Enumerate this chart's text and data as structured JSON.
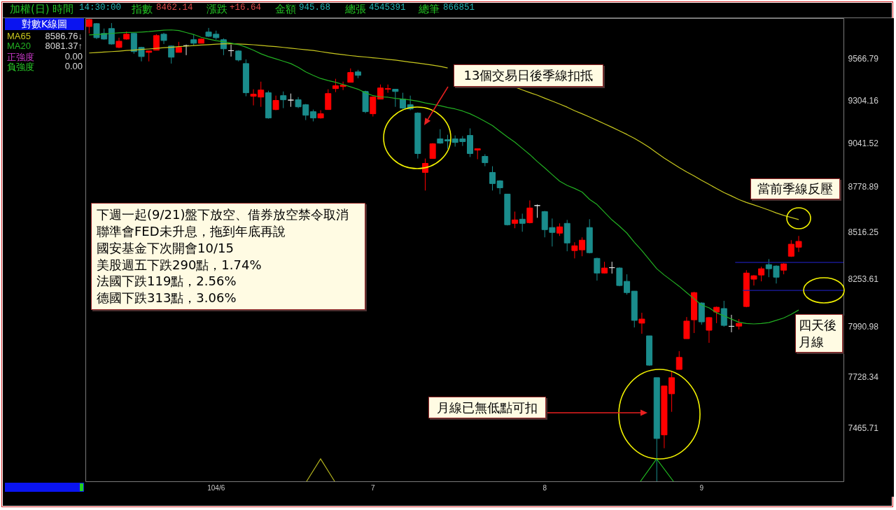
{
  "chart_data": {
    "type": "candlestick",
    "title": "加權(日)",
    "subtitle": "時間 14:30:00 指數 8462.14 漲跌 +16.64 金額 945.68 總張 4545391 總筆 866851",
    "legend_title": "對數K線圖",
    "legend": "top left",
    "log": "y2",
    "y2lim": [
      7203,
      9830
    ],
    "y2ticks": [
      7465.71,
      7728.34,
      7990.98,
      8253.61,
      8516.25,
      8778.89,
      9041.52,
      9304.16,
      9566.79
    ],
    "categories": [
      null,
      null,
      null,
      null,
      null,
      null,
      null,
      null,
      null,
      null,
      null,
      null,
      null,
      null,
      null,
      null,
      null,
      "104/6",
      null,
      null,
      null,
      null,
      null,
      null,
      null,
      null,
      null,
      null,
      null,
      null,
      null,
      null,
      null,
      null,
      null,
      null,
      null,
      null,
      "7",
      null,
      null,
      null,
      null,
      null,
      null,
      null,
      null,
      null,
      null,
      null,
      null,
      null,
      null,
      null,
      null,
      null,
      null,
      null,
      null,
      null,
      null,
      "8",
      null,
      null,
      null,
      null,
      null,
      null,
      null,
      null,
      null,
      null,
      null,
      null,
      null,
      null,
      null,
      null,
      null,
      null,
      null,
      null,
      "9",
      null,
      null,
      null,
      null,
      null,
      null,
      null,
      null,
      null,
      null,
      null,
      null,
      null
    ],
    "series": [
      {
        "axis": "y2",
        "ohlc": [
          [
            9775,
            9826,
            9730,
            9821
          ],
          [
            9794,
            9798,
            9693,
            9702
          ],
          [
            9730,
            9762,
            9689,
            9693
          ],
          [
            9762,
            9798,
            9657,
            9661
          ],
          [
            9639,
            9702,
            9634,
            9679
          ],
          [
            9693,
            9743,
            9689,
            9725
          ],
          [
            9730,
            9734,
            9598,
            9612
          ],
          [
            9639,
            9643,
            9549,
            9580
          ],
          [
            9607,
            9616,
            9549,
            9616
          ],
          [
            9621,
            9725,
            9621,
            9716
          ],
          [
            9725,
            9734,
            9661,
            9684
          ],
          [
            9648,
            9652,
            9535,
            9576
          ],
          [
            9607,
            9675,
            9607,
            9639
          ],
          [
            9650,
            9657,
            9589,
            9650
          ],
          [
            9689,
            9725,
            9652,
            9666
          ],
          [
            9666,
            9698,
            9666,
            9693
          ],
          [
            9739,
            9766,
            9707,
            9711
          ],
          [
            9725,
            9748,
            9689,
            9702
          ],
          [
            9689,
            9698,
            9589,
            9630
          ],
          [
            9618,
            9657,
            9580,
            9618
          ],
          [
            9616,
            9621,
            9549,
            9558
          ],
          [
            9535,
            9562,
            9328,
            9350
          ],
          [
            9328,
            9372,
            9271,
            9341
          ],
          [
            9323,
            9420,
            9262,
            9367
          ],
          [
            9350,
            9363,
            9189,
            9193
          ],
          [
            9245,
            9332,
            9241,
            9302
          ],
          [
            9332,
            9358,
            9254,
            9306
          ],
          [
            9304,
            9345,
            9262,
            9304
          ],
          [
            9306,
            9323,
            9254,
            9262
          ],
          [
            9275,
            9280,
            9180,
            9210
          ],
          [
            9232,
            9245,
            9172,
            9193
          ],
          [
            9193,
            9241,
            9189,
            9219
          ],
          [
            9245,
            9372,
            9245,
            9345
          ],
          [
            9376,
            9438,
            9354,
            9394
          ],
          [
            9389,
            9420,
            9367,
            9398
          ],
          [
            9416,
            9504,
            9416,
            9478
          ],
          [
            9482,
            9495,
            9442,
            9460
          ],
          [
            9358,
            9363,
            9223,
            9232
          ],
          [
            9219,
            9328,
            9202,
            9323
          ],
          [
            9310,
            9402,
            9310,
            9380
          ],
          [
            9372,
            9402,
            9350,
            9376
          ],
          [
            9372,
            9372,
            9262,
            9358
          ],
          [
            9310,
            9350,
            9249,
            9254
          ],
          [
            9275,
            9332,
            9241,
            9249
          ],
          [
            9223,
            9228,
            8946,
            8976
          ],
          [
            8863,
            8946,
            8756,
            8917
          ],
          [
            8946,
            9039,
            8946,
            9035
          ],
          [
            9065,
            9124,
            9035,
            9039
          ],
          [
            9060,
            9090,
            9005,
            9052
          ],
          [
            9065,
            9086,
            9018,
            9043
          ],
          [
            9065,
            9082,
            9022,
            9048
          ],
          [
            9086,
            9129,
            8955,
            8976
          ],
          [
            8997,
            9005,
            8942,
            9005
          ],
          [
            8959,
            8972,
            8900,
            8921
          ],
          [
            8863,
            8900,
            8756,
            8797
          ],
          [
            8813,
            8817,
            8735,
            8772
          ],
          [
            8735,
            8735,
            8553,
            8557
          ],
          [
            8565,
            8633,
            8537,
            8585
          ],
          [
            8589,
            8621,
            8517,
            8565
          ],
          [
            8569,
            8698,
            8565,
            8654
          ],
          [
            8668,
            8674,
            8597,
            8668
          ],
          [
            8633,
            8637,
            8485,
            8529
          ],
          [
            8541,
            8593,
            8433,
            8513
          ],
          [
            8509,
            8565,
            8493,
            8545
          ],
          [
            8565,
            8585,
            8406,
            8453
          ],
          [
            8410,
            8457,
            8366,
            8437
          ],
          [
            8414,
            8485,
            8378,
            8469
          ],
          [
            8541,
            8589,
            8394,
            8398
          ],
          [
            8366,
            8370,
            8242,
            8284
          ],
          [
            8284,
            8347,
            8281,
            8312
          ],
          [
            8314,
            8347,
            8281,
            8314
          ],
          [
            8312,
            8316,
            8211,
            8215
          ],
          [
            8238,
            8277,
            8165,
            8176
          ],
          [
            8184,
            8184,
            7987,
            8025
          ],
          [
            8010,
            8066,
            7953,
            8032
          ],
          [
            7942,
            7942,
            7784,
            7787
          ],
          [
            7722,
            7722,
            7203,
            7413
          ],
          [
            7431,
            7679,
            7365,
            7679
          ],
          [
            7639,
            7755,
            7547,
            7722
          ],
          [
            7765,
            7861,
            7765,
            7828
          ],
          [
            7927,
            8043,
            7927,
            8021
          ],
          [
            8028,
            8180,
            7957,
            8176
          ],
          [
            8119,
            8123,
            8002,
            8017
          ],
          [
            7972,
            8043,
            7905,
            8040
          ],
          [
            8070,
            8100,
            8010,
            8096
          ],
          [
            8089,
            8131,
            7991,
            7998
          ],
          [
            7993,
            8055,
            7961,
            7993
          ],
          [
            7994,
            8032,
            7976,
            8009
          ],
          [
            8100,
            8300,
            8096,
            8284
          ],
          [
            8250,
            8273,
            8215,
            8269
          ],
          [
            8273,
            8319,
            8238,
            8308
          ],
          [
            8331,
            8362,
            8261,
            8308
          ],
          [
            8323,
            8327,
            8226,
            8261
          ],
          [
            8300,
            8339,
            8277,
            8335
          ],
          [
            8378,
            8469,
            8374,
            8446
          ],
          [
            8429,
            8493,
            8402,
            8462
          ]
        ],
        "colors": [
          "#ff0000",
          "#1a8c8c",
          "#1a8c8c",
          "#1a8c8c",
          "#ff0000",
          "#ff0000",
          "#1a8c8c",
          "#1a8c8c",
          "#ff0000",
          "#ff0000",
          "#1a8c8c",
          "#1a8c8c",
          "#ff0000",
          "#e6e6e6",
          "#1a8c8c",
          "#ff0000",
          "#1a8c8c",
          "#1a8c8c",
          "#1a8c8c",
          "#e6e6e6",
          "#1a8c8c",
          "#1a8c8c",
          "#ff0000",
          "#ff0000",
          "#1a8c8c",
          "#ff0000",
          "#1a8c8c",
          "#e6e6e6",
          "#1a8c8c",
          "#1a8c8c",
          "#1a8c8c",
          "#ff0000",
          "#ff0000",
          "#ff0000",
          "#ff0000",
          "#ff0000",
          "#1a8c8c",
          "#1a8c8c",
          "#ff0000",
          "#ff0000",
          "#ff0000",
          "#1a8c8c",
          "#1a8c8c",
          "#1a8c8c",
          "#1a8c8c",
          "#ff0000",
          "#ff0000",
          "#1a8c8c",
          "#1a8c8c",
          "#1a8c8c",
          "#1a8c8c",
          "#1a8c8c",
          "#ff0000",
          "#1a8c8c",
          "#1a8c8c",
          "#1a8c8c",
          "#1a8c8c",
          "#ff0000",
          "#1a8c8c",
          "#ff0000",
          "#e6e6e6",
          "#1a8c8c",
          "#1a8c8c",
          "#ff0000",
          "#1a8c8c",
          "#ff0000",
          "#ff0000",
          "#1a8c8c",
          "#1a8c8c",
          "#ff0000",
          "#e6e6e6",
          "#1a8c8c",
          "#1a8c8c",
          "#1a8c8c",
          "#ff0000",
          "#1a8c8c",
          "#1a8c8c",
          "#ff0000",
          "#ff0000",
          "#ff0000",
          "#ff0000",
          "#ff0000",
          "#1a8c8c",
          "#ff0000",
          "#ff0000",
          "#1a8c8c",
          "#e6e6e6",
          "#ff0000",
          "#ff0000",
          "#ff0000",
          "#ff0000",
          "#1a8c8c",
          "#1a8c8c",
          "#ff0000",
          "#ff0000",
          "#ff0000"
        ]
      },
      {
        "name": "MA65",
        "type": "line",
        "axis": "y2",
        "color": "#c8c81e",
        "values": [
          9603,
          9606,
          9609,
          9612,
          9615,
          9619,
          9622,
          9626,
          9629,
          9633,
          9637,
          9640,
          9644,
          9647,
          9651,
          9654,
          9657,
          9660,
          9662,
          9662,
          9661,
          9659,
          9656,
          9652,
          9648,
          9644,
          9639,
          9634,
          9629,
          9624,
          9619,
          9612,
          9605,
          9598,
          9592,
          9586,
          9581,
          9577,
          9572,
          9568,
          9562,
          9557,
          9551,
          9544,
          9538,
          9532,
          9525,
          9517,
          9507,
          null,
          null,
          null,
          null,
          null,
          null,
          null,
          null,
          9386,
          9368,
          9351,
          9335,
          9316,
          9298,
          9279,
          9260,
          9238,
          9219,
          9199,
          9178,
          9157,
          9136,
          9114,
          9092,
          9068,
          9042,
          9013,
          8980,
          8949,
          8920,
          8892,
          8866,
          8842,
          8816,
          8792,
          8768,
          8744,
          8724,
          8703,
          8686,
          8672,
          8657,
          8642,
          8625,
          8611,
          8599,
          8587
        ]
      },
      {
        "name": "MA20",
        "type": "line",
        "axis": "y2",
        "color": "#22b022",
        "values": [
          9720,
          9723,
          9726,
          9730,
          9734,
          9736,
          9737,
          9739,
          9742,
          9747,
          9751,
          9753,
          9749,
          9736,
          9723,
          9705,
          9693,
          9683,
          9676,
          9667,
          9657,
          9641,
          9621,
          9598,
          9580,
          9565,
          9550,
          9535,
          9511,
          9482,
          9460,
          9440,
          9427,
          9416,
          9402,
          9387,
          9372,
          9350,
          9332,
          9324,
          9322,
          9315,
          9310,
          9305,
          9297,
          9286,
          9278,
          9269,
          9258,
          9249,
          9236,
          9219,
          9197,
          9172,
          9146,
          9111,
          9077,
          9045,
          9007,
          8970,
          8928,
          8890,
          8850,
          8811,
          8786,
          8768,
          8747,
          8704,
          8674,
          8629,
          8585,
          8549,
          8509,
          8457,
          8410,
          8359,
          8308,
          8273,
          8242,
          8211,
          8176,
          8142,
          8108,
          8093,
          8066,
          8049,
          8032,
          8015,
          8008,
          8006,
          8008,
          8013,
          8025,
          8038,
          8058,
          8081
        ]
      }
    ],
    "ref_lines": [
      {
        "axis": "y2",
        "value": 8343,
        "color": "#1c1ca8"
      },
      {
        "axis": "y2",
        "value": 8188,
        "color": "#1c1ca8"
      }
    ],
    "annotations": [
      "8586.76↓",
      "8081.37↑",
      "正強度",
      "0.00",
      "負強度",
      "0.00",
      "下週一起(9/21)盤下放空、借券放空禁令取消",
      "聯準會FED未升息，拖到年底再說",
      "國安基金下次開會10/15",
      "美股週五下跌290點，1.74%",
      "法國下跌119點，2.56%",
      "德國下跌313點，3.06%",
      "13個交易日後季線扣抵",
      "當前季線反壓",
      "四天後月線",
      "月線已無低點可扣"
    ]
  }
}
